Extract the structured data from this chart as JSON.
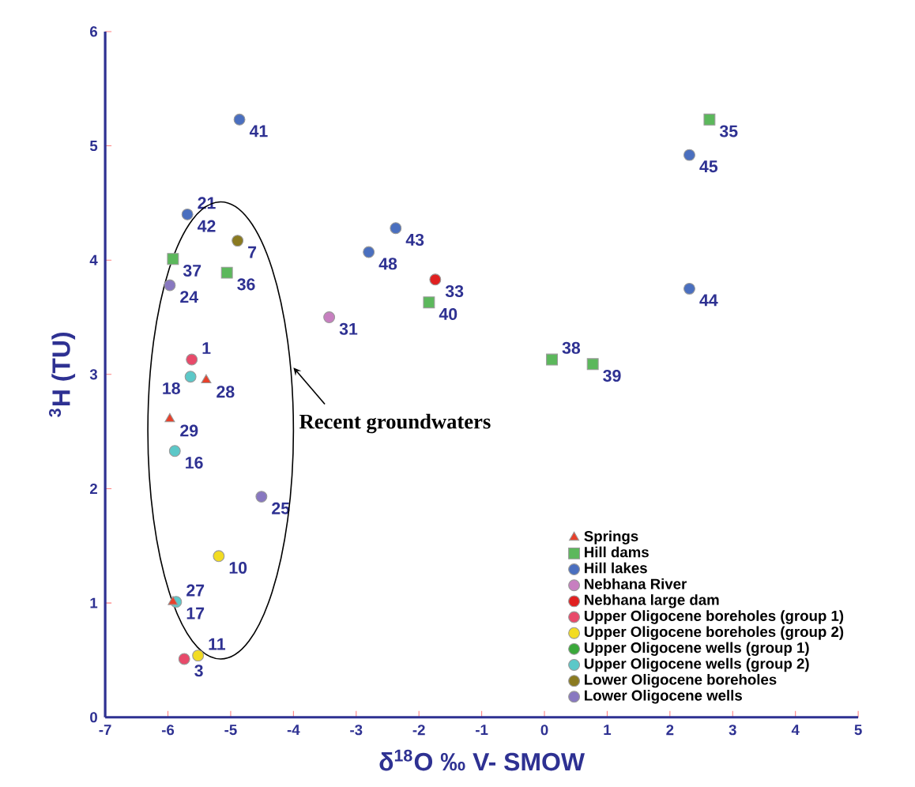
{
  "chart_data": {
    "type": "scatter",
    "xlabel": "δ$^{18}$O  ‰ V- SMOW",
    "ylabel": "$^{3}$H (TU)",
    "xlim": [
      -7,
      5
    ],
    "ylim": [
      0,
      6
    ],
    "xticks": [
      -7,
      -6,
      -5,
      -4,
      -3,
      -2,
      -1,
      0,
      1,
      2,
      3,
      4,
      5
    ],
    "yticks": [
      0,
      1,
      2,
      3,
      4,
      5,
      6
    ],
    "legend": "bottom right",
    "series": [
      {
        "name": "Springs",
        "color": "#e8402a",
        "marker": "triangle",
        "x": [
          -5.39,
          -5.97,
          -5.92
        ],
        "values": [
          2.95,
          2.61,
          1.01
        ]
      },
      {
        "name": "Hill dams",
        "color": "#5cb85c",
        "marker": "square",
        "x": [
          2.63,
          -5.92,
          -5.06,
          -1.84,
          0.12,
          0.77
        ],
        "values": [
          5.23,
          4.01,
          3.89,
          3.63,
          3.13,
          3.09
        ]
      },
      {
        "name": "Hill lakes",
        "color": "#4a6fbf",
        "marker": "circle",
        "x": [
          -4.86,
          -5.69,
          2.31,
          -2.37,
          -2.8,
          2.31
        ],
        "values": [
          5.23,
          4.4,
          4.92,
          4.28,
          4.07,
          3.75
        ]
      },
      {
        "name": "Nebhana River",
        "color": "#c77fc0",
        "marker": "circle",
        "x": [
          -3.43
        ],
        "values": [
          3.5
        ]
      },
      {
        "name": "Nebhana large dam",
        "color": "#e02020",
        "marker": "circle",
        "x": [
          -1.74
        ],
        "values": [
          3.83
        ]
      },
      {
        "name": "Upper Oligocene boreholes (group 1)",
        "color": "#e84a6a",
        "marker": "circle",
        "x": [
          -5.62,
          -5.74
        ],
        "values": [
          3.13,
          0.51
        ]
      },
      {
        "name": "Upper Oligocene boreholes (group 2)",
        "color": "#f2dc22",
        "marker": "circle",
        "x": [
          -5.19,
          -5.52
        ],
        "values": [
          1.41,
          0.54
        ]
      },
      {
        "name": "Upper Oligocene wells (group 1)",
        "color": "#3aa83a",
        "marker": "circle"
      },
      {
        "name": "Upper Oligocene wells (group 2)",
        "color": "#5cc8c8",
        "marker": "circle",
        "x": [
          -5.64,
          -5.89,
          -5.87
        ],
        "values": [
          2.98,
          2.33,
          1.01
        ]
      },
      {
        "name": "Lower Oligocene boreholes",
        "color": "#8a7a20",
        "marker": "circle",
        "x": [
          -4.89
        ],
        "values": [
          4.17
        ]
      },
      {
        "name": "Lower Oligocene wells",
        "color": "#8878c0",
        "marker": "circle",
        "x": [
          -5.97,
          -4.51
        ],
        "values": [
          3.78,
          1.93
        ]
      }
    ],
    "annotations": [
      {
        "text": "28",
        "x": -5.39,
        "y": 2.95
      },
      {
        "text": "29",
        "x": -5.97,
        "y": 2.61
      },
      {
        "text": "17",
        "x": -5.87,
        "y": 1.01
      },
      {
        "text": "27",
        "x": -5.87,
        "y": 1.01
      },
      {
        "text": "35",
        "x": 2.63,
        "y": 5.23
      },
      {
        "text": "37",
        "x": -5.92,
        "y": 4.01
      },
      {
        "text": "36",
        "x": -5.06,
        "y": 3.89
      },
      {
        "text": "40",
        "x": -1.84,
        "y": 3.63
      },
      {
        "text": "38",
        "x": 0.12,
        "y": 3.13
      },
      {
        "text": "39",
        "x": 0.77,
        "y": 3.09
      },
      {
        "text": "41",
        "x": -4.86,
        "y": 5.23
      },
      {
        "text": "42",
        "x": -5.69,
        "y": 4.4
      },
      {
        "text": "21",
        "x": -5.69,
        "y": 4.4
      },
      {
        "text": "45",
        "x": 2.31,
        "y": 4.92
      },
      {
        "text": "43",
        "x": -2.37,
        "y": 4.28
      },
      {
        "text": "48",
        "x": -2.8,
        "y": 4.07
      },
      {
        "text": "44",
        "x": 2.31,
        "y": 3.75
      },
      {
        "text": "31",
        "x": -3.43,
        "y": 3.5
      },
      {
        "text": "33",
        "x": -1.74,
        "y": 3.83
      },
      {
        "text": "1",
        "x": -5.62,
        "y": 3.13
      },
      {
        "text": "3",
        "x": -5.74,
        "y": 0.51
      },
      {
        "text": "10",
        "x": -5.19,
        "y": 1.41
      },
      {
        "text": "11",
        "x": -5.52,
        "y": 0.54
      },
      {
        "text": "18",
        "x": -5.64,
        "y": 2.98
      },
      {
        "text": "16",
        "x": -5.89,
        "y": 2.33
      },
      {
        "text": "7",
        "x": -4.89,
        "y": 4.17
      },
      {
        "text": "24",
        "x": -5.97,
        "y": 3.78
      },
      {
        "text": "25",
        "x": -4.51,
        "y": 1.93
      },
      "Recent groundwaters"
    ]
  }
}
